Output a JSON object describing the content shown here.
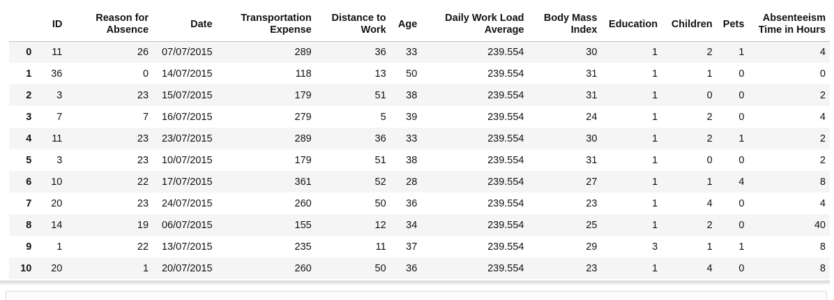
{
  "table": {
    "index_header": "",
    "columns": [
      [
        "ID"
      ],
      [
        "Reason for",
        "Absence"
      ],
      [
        "Date"
      ],
      [
        "Transportation",
        "Expense"
      ],
      [
        "Distance to",
        "Work"
      ],
      [
        "Age"
      ],
      [
        "Daily Work Load",
        "Average"
      ],
      [
        "Body Mass",
        "Index"
      ],
      [
        "Education"
      ],
      [
        "Children"
      ],
      [
        "Pets"
      ],
      [
        "Absenteeism",
        "Time in Hours"
      ]
    ],
    "rows": [
      {
        "index": "0",
        "cells": [
          "11",
          "26",
          "07/07/2015",
          "289",
          "36",
          "33",
          "239.554",
          "30",
          "1",
          "2",
          "1",
          "4"
        ]
      },
      {
        "index": "1",
        "cells": [
          "36",
          "0",
          "14/07/2015",
          "118",
          "13",
          "50",
          "239.554",
          "31",
          "1",
          "1",
          "0",
          "0"
        ]
      },
      {
        "index": "2",
        "cells": [
          "3",
          "23",
          "15/07/2015",
          "179",
          "51",
          "38",
          "239.554",
          "31",
          "1",
          "0",
          "0",
          "2"
        ]
      },
      {
        "index": "3",
        "cells": [
          "7",
          "7",
          "16/07/2015",
          "279",
          "5",
          "39",
          "239.554",
          "24",
          "1",
          "2",
          "0",
          "4"
        ]
      },
      {
        "index": "4",
        "cells": [
          "11",
          "23",
          "23/07/2015",
          "289",
          "36",
          "33",
          "239.554",
          "30",
          "1",
          "2",
          "1",
          "2"
        ]
      },
      {
        "index": "5",
        "cells": [
          "3",
          "23",
          "10/07/2015",
          "179",
          "51",
          "38",
          "239.554",
          "31",
          "1",
          "0",
          "0",
          "2"
        ]
      },
      {
        "index": "6",
        "cells": [
          "10",
          "22",
          "17/07/2015",
          "361",
          "52",
          "28",
          "239.554",
          "27",
          "1",
          "1",
          "4",
          "8"
        ]
      },
      {
        "index": "7",
        "cells": [
          "20",
          "23",
          "24/07/2015",
          "260",
          "50",
          "36",
          "239.554",
          "23",
          "1",
          "4",
          "0",
          "4"
        ]
      },
      {
        "index": "8",
        "cells": [
          "14",
          "19",
          "06/07/2015",
          "155",
          "12",
          "34",
          "239.554",
          "25",
          "1",
          "2",
          "0",
          "40"
        ]
      },
      {
        "index": "9",
        "cells": [
          "1",
          "22",
          "13/07/2015",
          "235",
          "11",
          "37",
          "239.554",
          "29",
          "3",
          "1",
          "1",
          "8"
        ]
      },
      {
        "index": "10",
        "cells": [
          "20",
          "1",
          "20/07/2015",
          "260",
          "50",
          "36",
          "239.554",
          "23",
          "1",
          "4",
          "0",
          "8"
        ]
      }
    ]
  }
}
